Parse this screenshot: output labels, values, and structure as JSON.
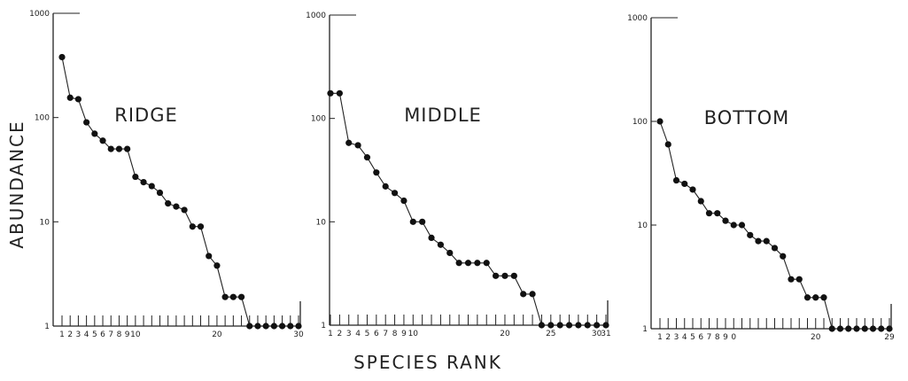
{
  "figure": {
    "ylabel": "ABUNDANCE",
    "xlabel": "SPECIES RANK"
  },
  "chart_data": [
    {
      "type": "line",
      "title": "RIDGE",
      "xlabel": "SPECIES RANK",
      "ylabel": "ABUNDANCE",
      "yscale": "log",
      "ylim": [
        1,
        1000
      ],
      "yticks": [
        "1",
        "10",
        "100",
        "1000"
      ],
      "xlim": [
        1,
        30
      ],
      "xtick_labels": [
        "1",
        "2",
        "3",
        "4",
        "5",
        "6",
        "7",
        "8",
        "9",
        "10",
        "20",
        "30"
      ],
      "x": [
        1,
        2,
        3,
        4,
        5,
        6,
        7,
        8,
        9,
        10,
        11,
        12,
        13,
        14,
        15,
        16,
        17,
        18,
        19,
        20,
        21,
        22,
        23,
        24,
        25,
        26,
        27,
        28,
        29,
        30
      ],
      "y": [
        380,
        155,
        150,
        90,
        70,
        60,
        50,
        50,
        50,
        27,
        24,
        22,
        19,
        15,
        14,
        13,
        9,
        9,
        4.7,
        3.8,
        1.9,
        1.9,
        1.9,
        1,
        1,
        1,
        1,
        1,
        1,
        1
      ]
    },
    {
      "type": "line",
      "title": "MIDDLE",
      "xlabel": "SPECIES RANK",
      "ylabel": "ABUNDANCE",
      "yscale": "log",
      "ylim": [
        1,
        1000
      ],
      "yticks": [
        "1",
        "10",
        "100",
        "1000"
      ],
      "xlim": [
        1,
        31
      ],
      "xtick_labels": [
        "1",
        "2",
        "3",
        "4",
        "5",
        "6",
        "7",
        "8",
        "9",
        "10",
        "20",
        "25",
        "30",
        "31"
      ],
      "x": [
        1,
        2,
        3,
        4,
        5,
        6,
        7,
        8,
        9,
        10,
        11,
        12,
        13,
        14,
        15,
        16,
        17,
        18,
        19,
        20,
        21,
        22,
        23,
        24,
        25,
        26,
        27,
        28,
        29,
        30,
        31
      ],
      "y": [
        175,
        175,
        58,
        55,
        42,
        30,
        22,
        19,
        16,
        10,
        10,
        7,
        6,
        5,
        4,
        4,
        4,
        4,
        3,
        3,
        3,
        2,
        2,
        1,
        1,
        1,
        1,
        1,
        1,
        1,
        1
      ]
    },
    {
      "type": "line",
      "title": "BOTTOM",
      "xlabel": "SPECIES RANK",
      "ylabel": "ABUNDANCE",
      "yscale": "log",
      "ylim": [
        1,
        1000
      ],
      "yticks": [
        "1",
        "10",
        "100",
        "1000"
      ],
      "xlim": [
        1,
        29
      ],
      "xtick_labels": [
        "1",
        "2",
        "3",
        "4",
        "5",
        "6",
        "7",
        "8",
        "9",
        "0",
        "20",
        "29"
      ],
      "x": [
        1,
        2,
        3,
        4,
        5,
        6,
        7,
        8,
        9,
        10,
        11,
        12,
        13,
        14,
        15,
        16,
        17,
        18,
        19,
        20,
        21,
        22,
        23,
        24,
        25,
        26,
        27,
        28,
        29
      ],
      "y": [
        100,
        60,
        27,
        25,
        22,
        17,
        13,
        13,
        11,
        10,
        10,
        8,
        7,
        7,
        6,
        5,
        3,
        3,
        2,
        2,
        2,
        1,
        1,
        1,
        1,
        1,
        1,
        1,
        1
      ]
    }
  ]
}
